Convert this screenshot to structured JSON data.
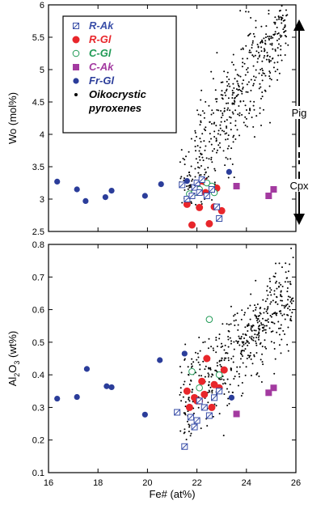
{
  "colors": {
    "r_ak": "#3a4fa8",
    "r_gl": "#e8262b",
    "c_gl": "#1f9a55",
    "c_ak": "#a33aa0",
    "fr_gl": "#2b3d9a",
    "oiko": "#000000"
  },
  "chart_data": [
    {
      "type": "scatter",
      "title": "",
      "xlabel": "",
      "ylabel": "Wo (mol%)",
      "xlim": [
        16,
        26
      ],
      "ylim": [
        2.5,
        6
      ],
      "yticks": [
        "2.5",
        "3",
        "3.5",
        "4",
        "4.5",
        "5",
        "5.5",
        "6"
      ],
      "ytick_values": [
        2.5,
        3,
        3.5,
        4,
        4.5,
        5,
        5.5,
        6
      ],
      "legend_position": "top-left",
      "legend": [
        {
          "key": "r_ak",
          "label": "R-Ak",
          "marker": "open-square-x"
        },
        {
          "key": "r_gl",
          "label": "R-Gl",
          "marker": "filled-circle"
        },
        {
          "key": "c_gl",
          "label": "C-Gl",
          "marker": "open-circle"
        },
        {
          "key": "c_ak",
          "label": "C-Ak",
          "marker": "filled-square"
        },
        {
          "key": "fr_gl",
          "label": "Fr-Gl",
          "marker": "filled-circle"
        },
        {
          "key": "oiko",
          "label": "Oikocrystic pyroxenes",
          "label_line1": "Oikocrystic",
          "label_line2": "pyroxenes",
          "marker": "dot"
        }
      ],
      "annotations": {
        "pig": "Pig",
        "cpx": "Cpx"
      },
      "series": [
        {
          "key": "fr_gl",
          "x": [
            16.35,
            17.15,
            17.5,
            18.3,
            18.55,
            19.9,
            20.55,
            21.6,
            23.3
          ],
          "y": [
            3.27,
            3.15,
            2.97,
            3.03,
            3.13,
            3.05,
            3.23,
            3.28,
            3.42
          ]
        },
        {
          "key": "r_gl",
          "x": [
            21.6,
            21.8,
            21.9,
            22.0,
            22.1,
            22.2,
            22.3,
            22.35,
            22.5,
            22.7,
            22.8,
            23.0
          ],
          "y": [
            2.92,
            2.6,
            3.12,
            3.2,
            2.87,
            3.28,
            3.27,
            3.1,
            2.62,
            2.88,
            3.17,
            2.82
          ]
        },
        {
          "key": "c_gl",
          "x": [
            21.7,
            21.9,
            22.1,
            22.4,
            22.6,
            22.7
          ],
          "y": [
            3.08,
            3.1,
            3.15,
            3.25,
            3.2,
            3.1
          ]
        },
        {
          "key": "r_ak",
          "x": [
            21.4,
            21.6,
            21.8,
            21.9,
            22.0,
            22.1,
            22.2,
            22.4,
            22.6,
            22.8,
            22.9
          ],
          "y": [
            3.22,
            3.0,
            3.05,
            3.18,
            3.25,
            3.1,
            3.3,
            3.05,
            3.15,
            2.88,
            2.7
          ]
        },
        {
          "key": "c_ak",
          "x": [
            23.6,
            24.9,
            25.1
          ],
          "y": [
            3.2,
            3.05,
            3.15
          ]
        },
        {
          "key": "oiko",
          "generated": true,
          "count": 520
        }
      ]
    },
    {
      "type": "scatter",
      "title": "",
      "xlabel": "Fe# (at%)",
      "ylabel": "Al2O3 (wt%)",
      "ylabel_main": "Al",
      "ylabel_sub1": "2",
      "ylabel_mid": "O",
      "ylabel_sub2": "3",
      "ylabel_unit": " (wt%)",
      "xlim": [
        16,
        26
      ],
      "ylim": [
        0.1,
        0.8
      ],
      "xticks": [
        "16",
        "18",
        "20",
        "22",
        "24",
        "26"
      ],
      "xtick_values": [
        16,
        18,
        20,
        22,
        24,
        26
      ],
      "yticks": [
        "0.1",
        "0.2",
        "0.3",
        "0.4",
        "0.5",
        "0.6",
        "0.7",
        "0.8"
      ],
      "ytick_values": [
        0.1,
        0.2,
        0.3,
        0.4,
        0.5,
        0.6,
        0.7,
        0.8
      ],
      "series": [
        {
          "key": "fr_gl",
          "x": [
            16.35,
            17.15,
            17.55,
            18.35,
            18.55,
            19.9,
            20.5,
            21.5,
            23.4
          ],
          "y": [
            0.327,
            0.332,
            0.418,
            0.365,
            0.362,
            0.278,
            0.445,
            0.465,
            0.33
          ]
        },
        {
          "key": "r_gl",
          "x": [
            21.6,
            21.7,
            21.9,
            22.0,
            22.1,
            22.2,
            22.3,
            22.4,
            22.6,
            22.7,
            22.9,
            23.1
          ],
          "y": [
            0.35,
            0.3,
            0.33,
            0.32,
            0.32,
            0.38,
            0.34,
            0.45,
            0.3,
            0.37,
            0.36,
            0.415
          ]
        },
        {
          "key": "c_gl",
          "x": [
            21.8,
            22.1,
            22.5,
            22.9
          ],
          "y": [
            0.41,
            0.36,
            0.57,
            0.4
          ]
        },
        {
          "key": "r_ak",
          "x": [
            21.2,
            21.5,
            21.75,
            21.9,
            22.0,
            22.1,
            22.3,
            22.5,
            22.7,
            22.9
          ],
          "y": [
            0.285,
            0.18,
            0.27,
            0.24,
            0.26,
            0.32,
            0.3,
            0.275,
            0.33,
            0.35
          ]
        },
        {
          "key": "c_ak",
          "x": [
            23.6,
            24.9,
            25.1
          ],
          "y": [
            0.28,
            0.345,
            0.36
          ]
        },
        {
          "key": "oiko",
          "generated": true,
          "count": 520
        }
      ]
    }
  ]
}
